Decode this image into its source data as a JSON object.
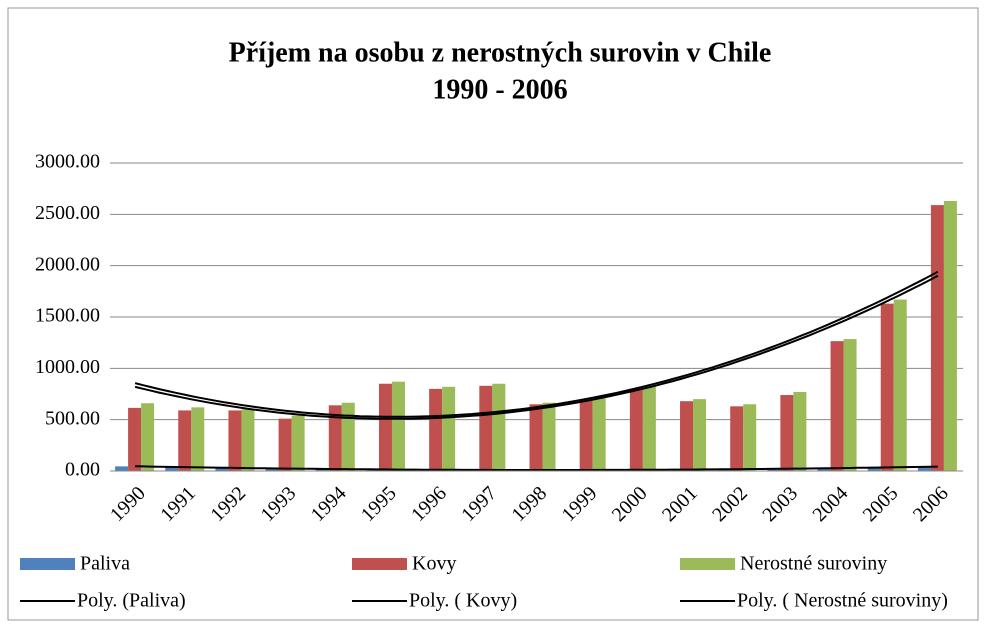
{
  "chart_data": {
    "type": "bar",
    "title": "Příjem na osobu z nerostných surovin v Chile",
    "subtitle": "1990 - 2006",
    "categories": [
      "1990",
      "1991",
      "1992",
      "1993",
      "1994",
      "1995",
      "1996",
      "1997",
      "1998",
      "1999",
      "2000",
      "2001",
      "2002",
      "2003",
      "2004",
      "2005",
      "2006"
    ],
    "series": [
      {
        "name": "Paliva",
        "color": "#4f81bd",
        "values": [
          45,
          35,
          30,
          25,
          20,
          15,
          15,
          15,
          10,
          10,
          10,
          10,
          15,
          20,
          25,
          40,
          45
        ]
      },
      {
        "name": "Kovy",
        "color": "#c0504d",
        "values": [
          615,
          590,
          590,
          510,
          640,
          850,
          800,
          830,
          650,
          690,
          800,
          680,
          630,
          740,
          1265,
          1630,
          2590
        ]
      },
      {
        "name": "Nerostné suroviny",
        "color": "#9bbb59",
        "values": [
          660,
          620,
          600,
          540,
          665,
          870,
          820,
          850,
          665,
          710,
          825,
          700,
          650,
          770,
          1285,
          1670,
          2630
        ]
      }
    ],
    "trendlines": [
      {
        "name": "Poly. (Paliva)",
        "series": 0,
        "order": 2,
        "color": "#000000"
      },
      {
        "name": "Poly. ( Kovy)",
        "series": 1,
        "order": 2,
        "color": "#000000"
      },
      {
        "name": "Poly. ( Nerostné suroviny)",
        "series": 2,
        "order": 2,
        "color": "#000000"
      }
    ],
    "ylim": [
      0,
      3000
    ],
    "yticks": [
      {
        "value": 0,
        "label": "0.00"
      },
      {
        "value": 500,
        "label": "500.00"
      },
      {
        "value": 1000,
        "label": "1000.00"
      },
      {
        "value": 1500,
        "label": "1500.00"
      },
      {
        "value": 2000,
        "label": "2000.00"
      },
      {
        "value": 2500,
        "label": "2500.00"
      },
      {
        "value": 3000,
        "label": "3000.00"
      }
    ],
    "grid": true,
    "legend": "bottom"
  }
}
